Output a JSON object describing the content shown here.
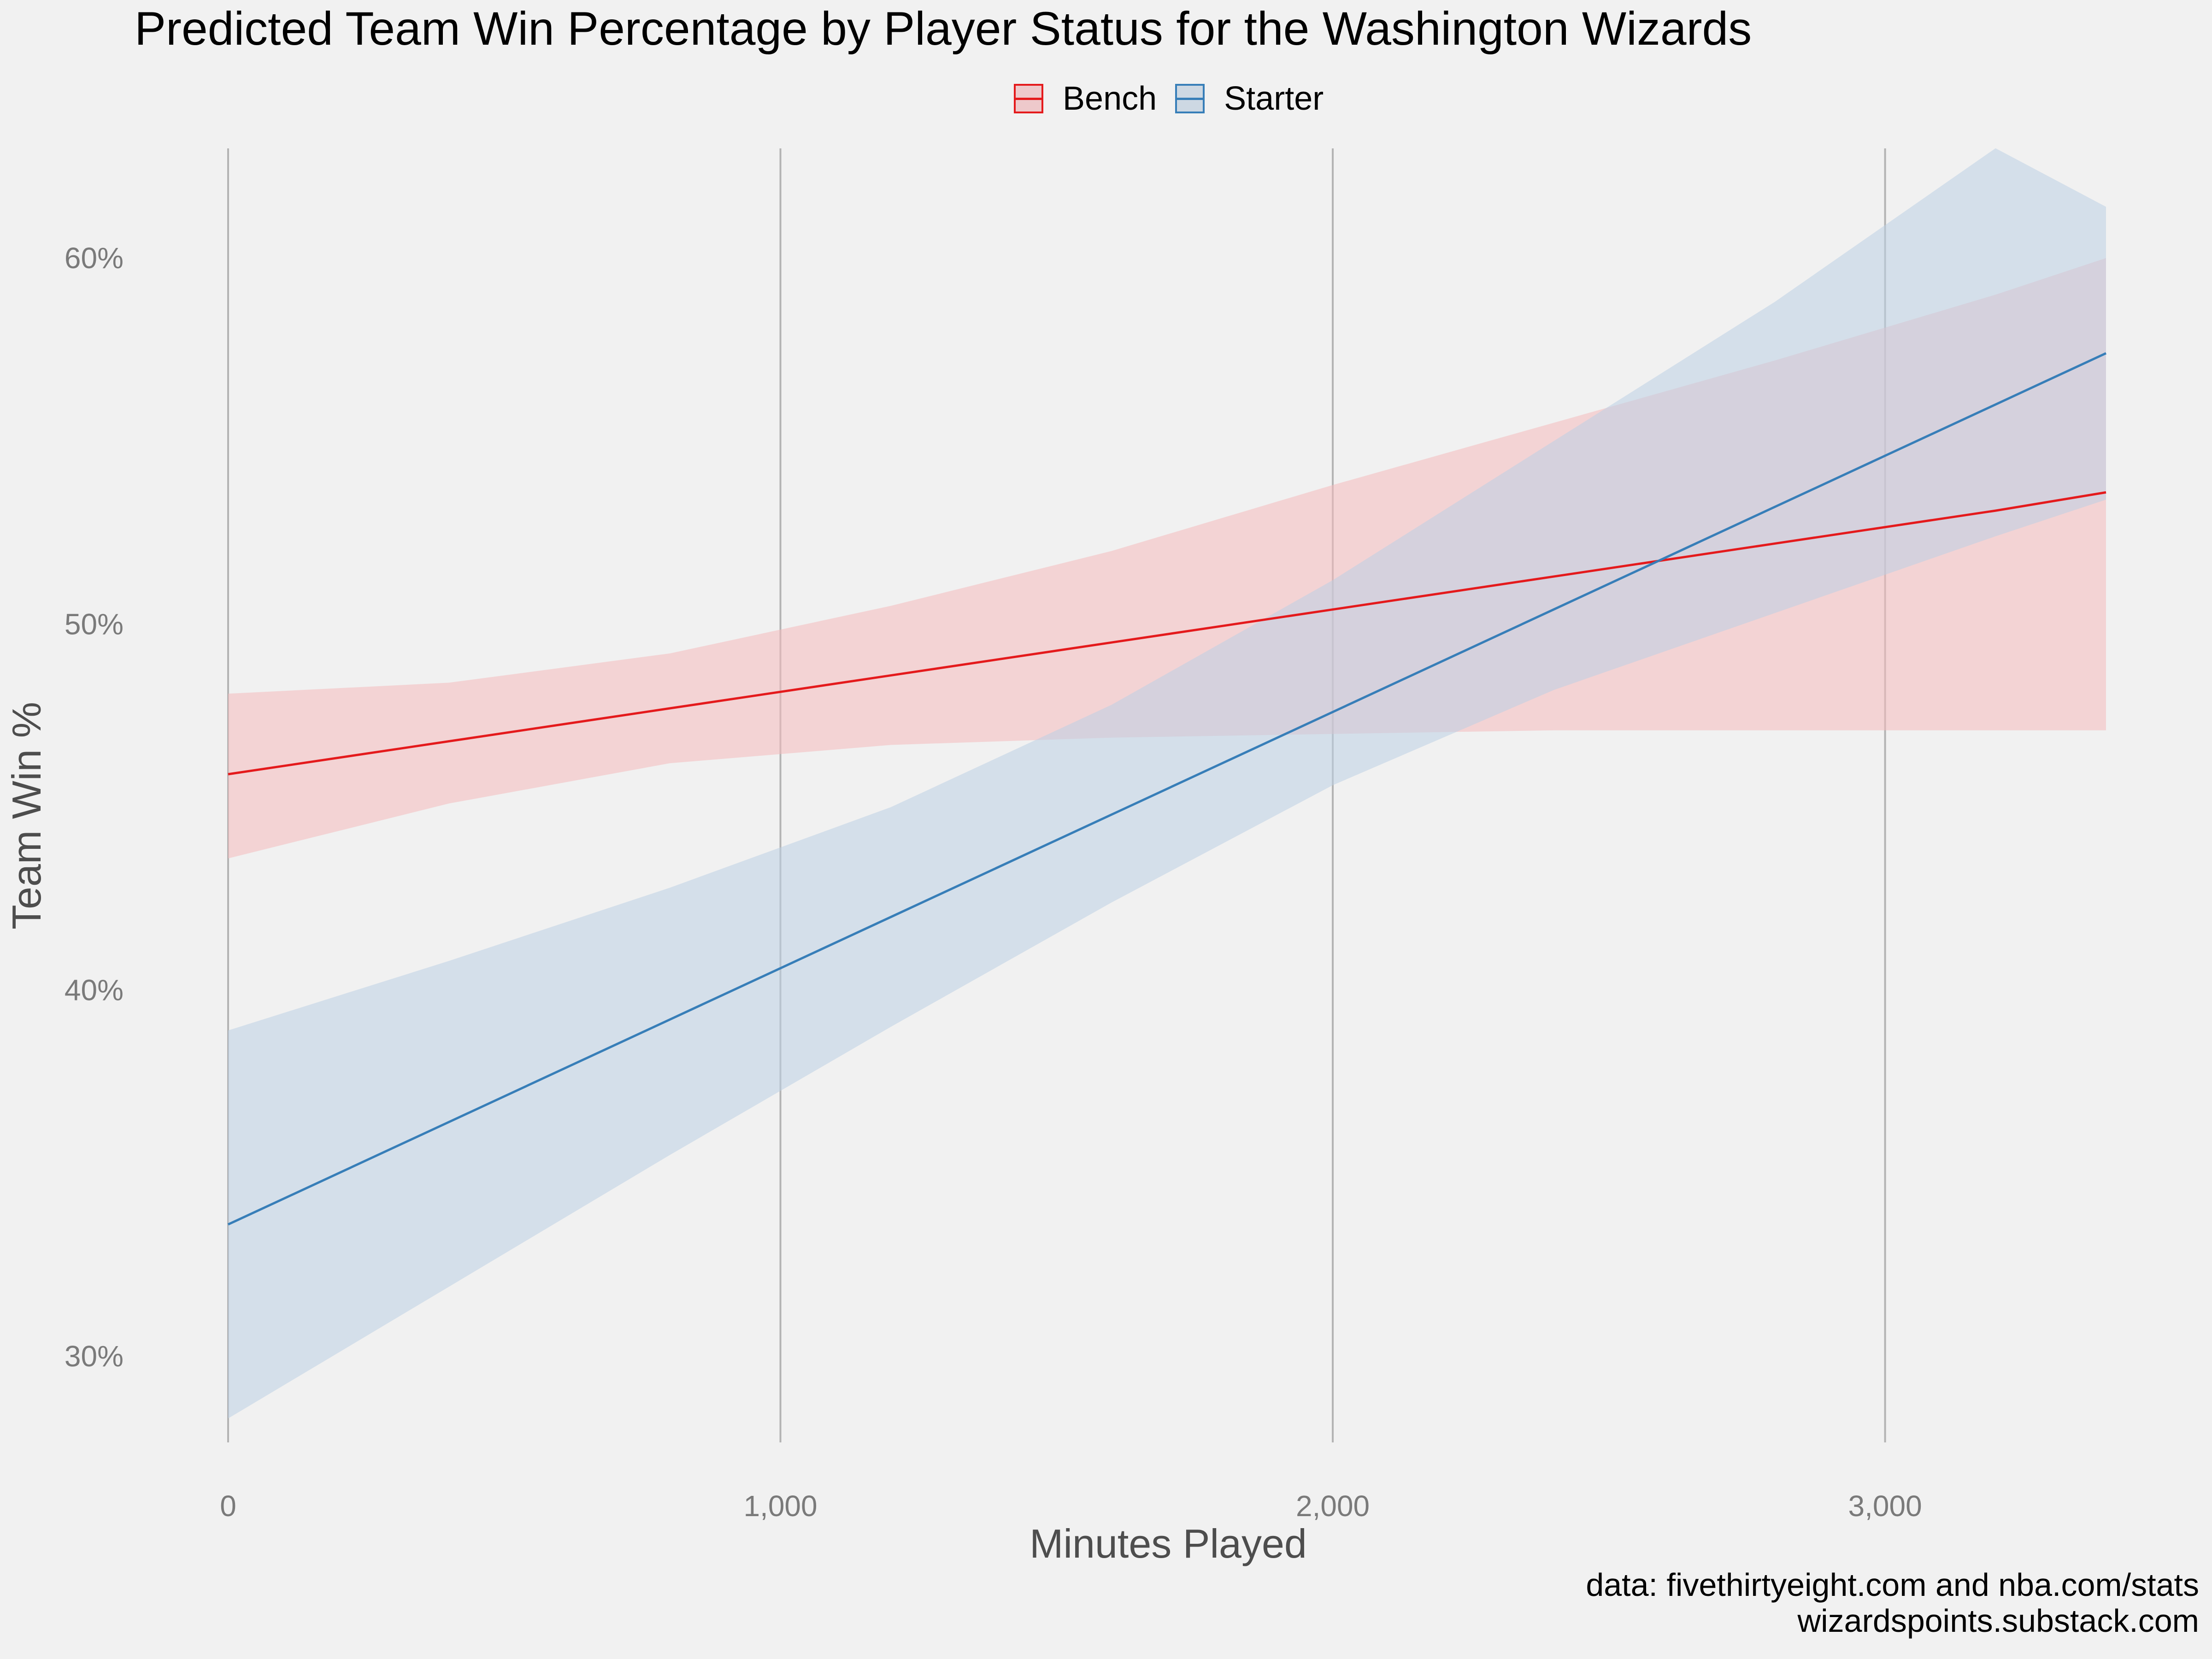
{
  "chart_data": {
    "type": "line",
    "title": "Predicted Team Win Percentage by Player Status for the Washington Wizards",
    "xlabel": "Minutes Played",
    "ylabel": "Team Win %",
    "xlim": [
      0,
      3400
    ],
    "ylim": [
      27,
      63
    ],
    "x_ticks": [
      0,
      1000,
      2000,
      3000
    ],
    "x_tick_labels": [
      "0",
      "1,000",
      "2,000",
      "3,000"
    ],
    "y_ticks": [
      30,
      40,
      50,
      60
    ],
    "y_tick_labels": [
      "30%",
      "40%",
      "50%",
      "60%"
    ],
    "grid": "vertical major lines only",
    "legend_position": "top",
    "series": [
      {
        "name": "Bench",
        "color": "#e41a1c",
        "fill": "#f4b9bb",
        "x": [
          0,
          400,
          800,
          1200,
          1600,
          2000,
          2400,
          2800,
          3200,
          3400
        ],
        "values": [
          45.9,
          46.8,
          47.7,
          48.6,
          49.5,
          50.4,
          51.3,
          52.2,
          53.1,
          53.6
        ],
        "lower": [
          43.6,
          45.1,
          46.2,
          46.7,
          46.9,
          47.0,
          47.1,
          47.1,
          47.1,
          47.1
        ],
        "upper": [
          48.1,
          48.4,
          49.2,
          50.5,
          52.0,
          53.8,
          55.5,
          57.2,
          59.0,
          60.0
        ]
      },
      {
        "name": "Starter",
        "color": "#377eb8",
        "fill": "#bcd0e4",
        "x": [
          0,
          400,
          800,
          1200,
          1600,
          2000,
          2400,
          2800,
          3200,
          3400
        ],
        "values": [
          33.6,
          36.4,
          39.2,
          42.0,
          44.8,
          47.6,
          50.4,
          53.2,
          56.0,
          57.4
        ],
        "lower": [
          28.3,
          31.9,
          35.5,
          39.0,
          42.4,
          45.6,
          48.2,
          50.3,
          52.4,
          53.4
        ],
        "upper": [
          38.9,
          40.8,
          42.8,
          45.0,
          47.8,
          51.2,
          55.0,
          58.8,
          63.0,
          61.4
        ]
      }
    ]
  },
  "caption": {
    "line1": "data: fivethirtyeight.com and nba.com/stats",
    "line2": "wizardspoints.substack.com"
  }
}
